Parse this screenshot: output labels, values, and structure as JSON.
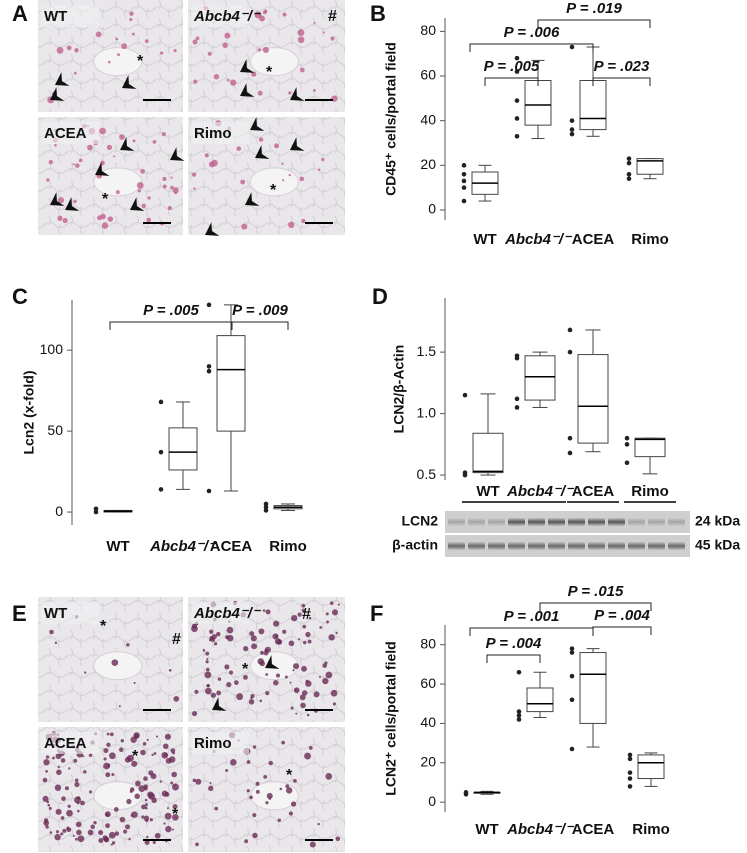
{
  "panel_labels": [
    "A",
    "B",
    "C",
    "D",
    "E",
    "F"
  ],
  "micrograph_a": {
    "tiles": [
      {
        "label": "WT",
        "symbols": [
          "*"
        ]
      },
      {
        "label": "Abcb4⁻/⁻",
        "symbols": [
          "#",
          "*"
        ]
      },
      {
        "label": "ACEA",
        "symbols": [
          "*"
        ]
      },
      {
        "label": "Rimo",
        "symbols": [
          "*"
        ]
      }
    ]
  },
  "micrograph_e": {
    "tiles": [
      {
        "label": "WT",
        "symbols": [
          "*",
          "#"
        ]
      },
      {
        "label": "Abcb4⁻/⁻",
        "symbols": [
          "#",
          "*"
        ]
      },
      {
        "label": "ACEA",
        "symbols": [
          "*",
          "*"
        ]
      },
      {
        "label": "Rimo",
        "symbols": [
          "*"
        ]
      }
    ]
  },
  "blot": {
    "rows": [
      "LCN2",
      "β-actin"
    ],
    "sizes": [
      "24 kDa",
      "45 kDa"
    ]
  },
  "chart_data": [
    {
      "type": "box",
      "ylabel": "CD45⁺ cells/portal field",
      "categories": [
        "WT",
        "Abcb4⁻/⁻",
        "ACEA",
        "Rimo"
      ],
      "ylim": [
        -4.5,
        86
      ],
      "yticks": [
        0,
        20,
        40,
        60,
        80
      ],
      "boxes": [
        {
          "min": 4,
          "q1": 7,
          "median": 12,
          "q3": 17,
          "max": 20,
          "points": [
            20,
            16,
            13,
            10,
            4
          ]
        },
        {
          "min": 32,
          "q1": 38,
          "median": 47,
          "q3": 58,
          "max": 67,
          "points": [
            68,
            62,
            49,
            41,
            33
          ]
        },
        {
          "min": 33,
          "q1": 36,
          "median": 41,
          "q3": 58,
          "max": 73,
          "points": [
            73,
            40,
            36,
            34
          ]
        },
        {
          "min": 14,
          "q1": 16,
          "median": 22,
          "q3": 23,
          "max": 23,
          "points": [
            23,
            21,
            16,
            14
          ]
        }
      ],
      "annotations": [
        "P = .005",
        "P = .006",
        "P = .019",
        "P = .023"
      ]
    },
    {
      "type": "box",
      "ylabel": "Lcn2 (x-fold)",
      "categories": [
        "WT",
        "Abcb4⁻/⁻",
        "ACEA",
        "Rimo"
      ],
      "ylim": [
        -8,
        131
      ],
      "yticks": [
        0,
        50,
        100
      ],
      "boxes": [
        {
          "min": 0,
          "q1": 0,
          "median": 0.5,
          "q3": 1,
          "max": 1,
          "points": [
            2,
            0
          ]
        },
        {
          "min": 14,
          "q1": 26,
          "median": 37,
          "q3": 52,
          "max": 68,
          "points": [
            68,
            37,
            14
          ]
        },
        {
          "min": 13,
          "q1": 50,
          "median": 88,
          "q3": 109,
          "max": 128,
          "points": [
            128,
            90,
            87,
            13
          ]
        },
        {
          "min": 1,
          "q1": 2,
          "median": 3,
          "q3": 4,
          "max": 5,
          "points": [
            5,
            3,
            1
          ]
        }
      ],
      "annotations": [
        "P = .005",
        "P = .009"
      ]
    },
    {
      "type": "box",
      "ylabel": "LCN2/β-Actin",
      "categories": [
        "WT",
        "Abcb4⁻/⁻",
        "ACEA",
        "Rimo"
      ],
      "ylim": [
        0.46,
        1.94
      ],
      "yticks": [
        0.5,
        {
          "value": 1,
          "label": "1.0"
        },
        1.5
      ],
      "boxes": [
        {
          "min": 0.5,
          "q1": 0.52,
          "median": 0.53,
          "q3": 0.84,
          "max": 1.16,
          "points": [
            1.15,
            0.52,
            0.5
          ]
        },
        {
          "min": 1.05,
          "q1": 1.11,
          "median": 1.3,
          "q3": 1.47,
          "max": 1.5,
          "points": [
            1.47,
            1.45,
            1.12,
            1.05
          ]
        },
        {
          "min": 0.69,
          "q1": 0.76,
          "median": 1.06,
          "q3": 1.48,
          "max": 1.68,
          "points": [
            1.68,
            1.5,
            0.8,
            0.68
          ]
        },
        {
          "min": 0.51,
          "q1": 0.65,
          "median": 0.79,
          "q3": 0.8,
          "max": 0.8,
          "points": [
            0.8,
            0.75,
            0.6
          ]
        }
      ],
      "annotations": []
    },
    {
      "type": "box",
      "ylabel": "LCN2⁺ cells/portal field",
      "categories": [
        "WT",
        "Abcb4⁻/⁻",
        "ACEA",
        "Rimo"
      ],
      "ylim": [
        -5,
        90
      ],
      "yticks": [
        0,
        20,
        40,
        60,
        80
      ],
      "boxes": [
        {
          "min": 4,
          "q1": 4.5,
          "median": 5,
          "q3": 5,
          "max": 5.5,
          "points": [
            5,
            4
          ]
        },
        {
          "min": 43,
          "q1": 46,
          "median": 50,
          "q3": 58,
          "max": 66,
          "points": [
            66,
            46,
            44,
            42
          ]
        },
        {
          "min": 28,
          "q1": 40,
          "median": 65,
          "q3": 76,
          "max": 78,
          "points": [
            78,
            76,
            64,
            52,
            27
          ]
        },
        {
          "min": 8,
          "q1": 12,
          "median": 20,
          "q3": 24,
          "max": 25,
          "points": [
            24,
            22,
            15,
            12,
            8
          ]
        }
      ],
      "annotations": [
        "P = .004",
        "P = .001",
        "P = .015",
        "P = .004"
      ]
    }
  ]
}
